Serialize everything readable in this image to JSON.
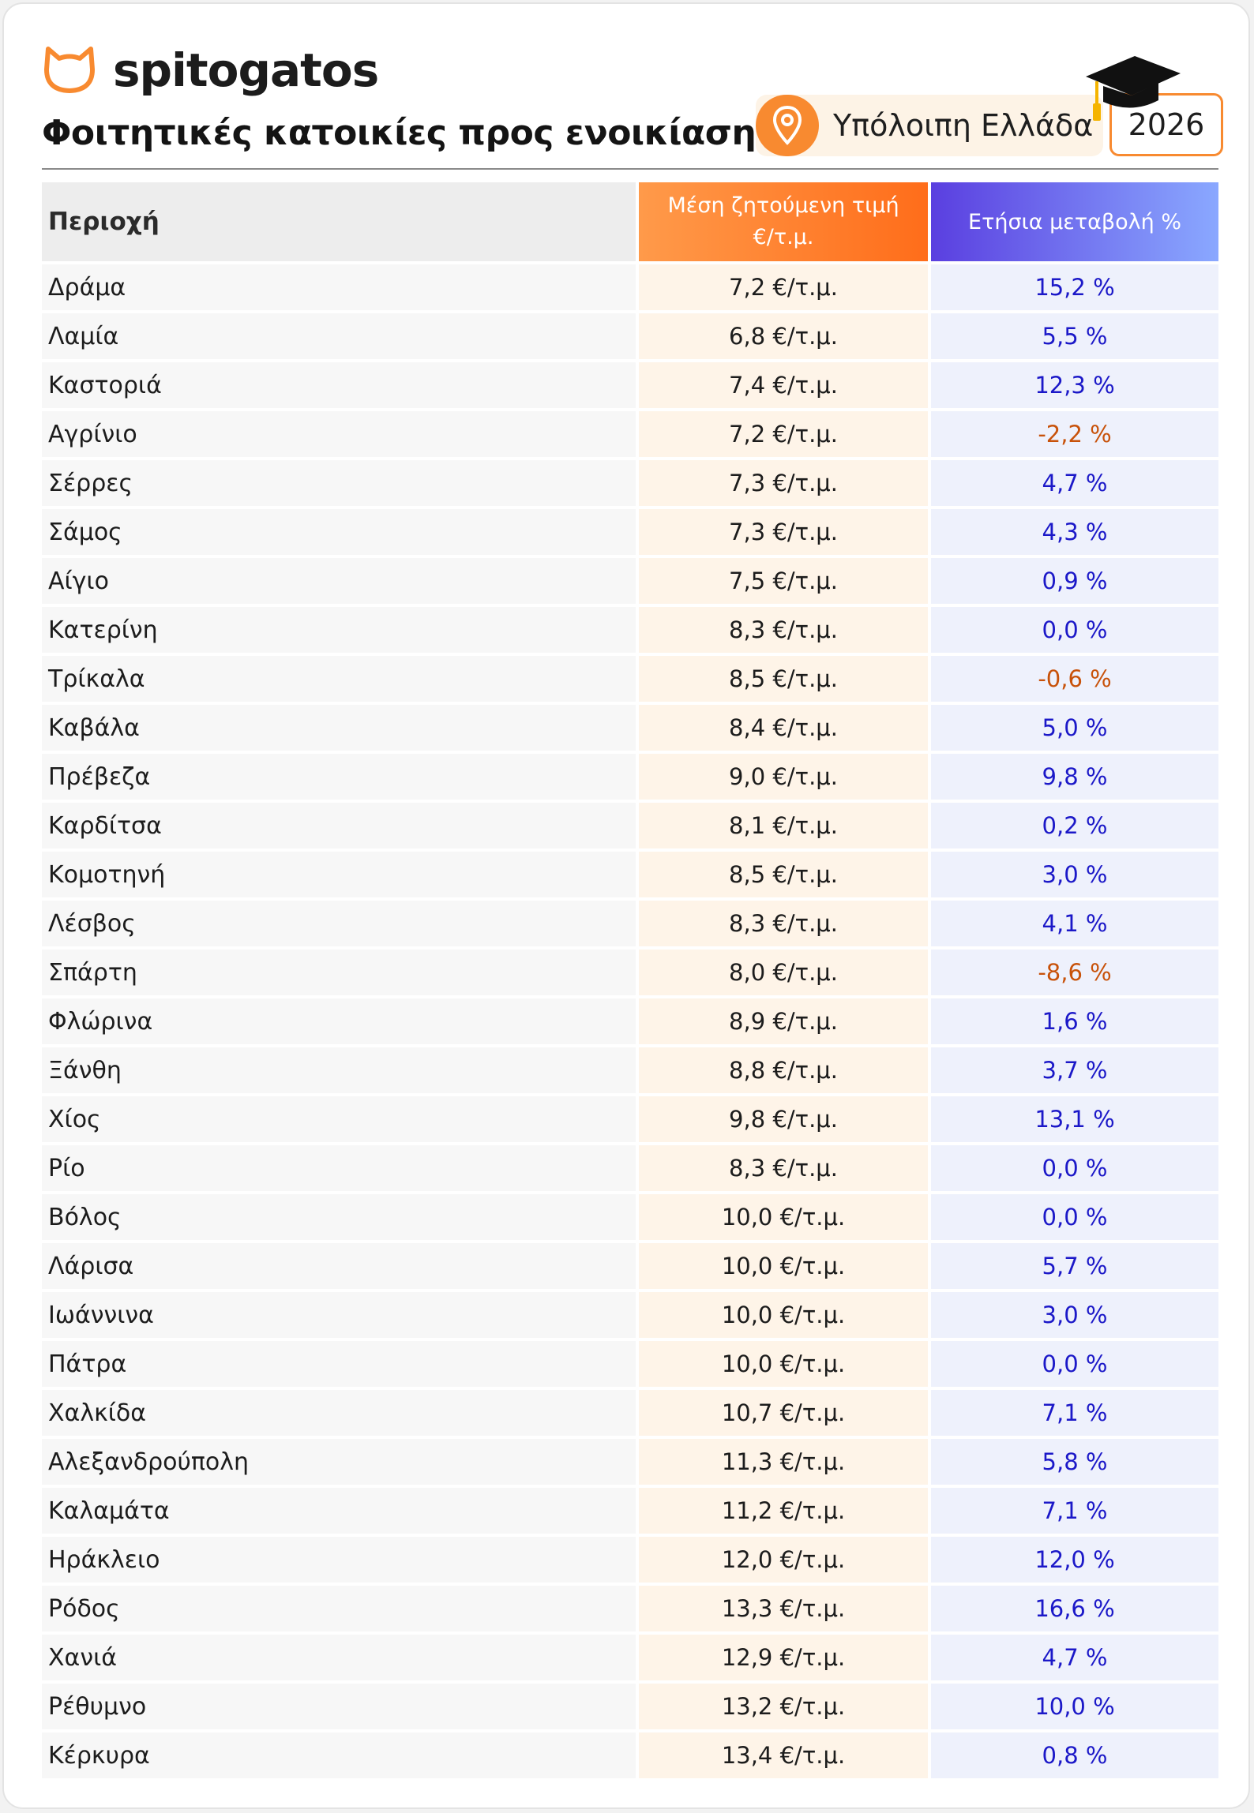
{
  "brand": {
    "name": "spitogatos"
  },
  "page": {
    "title": "Φοιτητικές κατοικίες προς ενοικίαση",
    "region": "Υπόλοιπη Ελλάδα",
    "year": "2026"
  },
  "colors": {
    "accent": "#f88a30",
    "positive": "#1b18c8",
    "negative": "#c8520a"
  },
  "icons": {
    "logo": "cat-logo-icon",
    "region": "location-pin-icon",
    "decoration": "graduation-cap-icon"
  },
  "table": {
    "headers": [
      "Περιοχή",
      "Μέση ζητούμενη τιμή €/τ.μ.",
      "Ετήσια μεταβολή %"
    ],
    "rows": [
      [
        "Δράμα",
        "7,2 €/τ.μ.",
        "15,2 %"
      ],
      [
        "Λαμία",
        "6,8 €/τ.μ.",
        "5,5 %"
      ],
      [
        "Καστοριά",
        "7,4 €/τ.μ.",
        "12,3 %"
      ],
      [
        "Αγρίνιο",
        "7,2 €/τ.μ.",
        "-2,2 %"
      ],
      [
        "Σέρρες",
        "7,3 €/τ.μ.",
        "4,7 %"
      ],
      [
        "Σάμος",
        "7,3 €/τ.μ.",
        "4,3 %"
      ],
      [
        "Αίγιο",
        "7,5 €/τ.μ.",
        "0,9 %"
      ],
      [
        "Κατερίνη",
        "8,3 €/τ.μ.",
        "0,0 %"
      ],
      [
        "Τρίκαλα",
        "8,5 €/τ.μ.",
        "-0,6 %"
      ],
      [
        "Καβάλα",
        "8,4 €/τ.μ.",
        "5,0 %"
      ],
      [
        "Πρέβεζα",
        "9,0 €/τ.μ.",
        "9,8 %"
      ],
      [
        "Καρδίτσα",
        "8,1 €/τ.μ.",
        "0,2 %"
      ],
      [
        "Κομοτηνή",
        "8,5 €/τ.μ.",
        "3,0 %"
      ],
      [
        "Λέσβος",
        "8,3 €/τ.μ.",
        "4,1 %"
      ],
      [
        "Σπάρτη",
        "8,0 €/τ.μ.",
        "-8,6 %"
      ],
      [
        "Φλώρινα",
        "8,9 €/τ.μ.",
        "1,6 %"
      ],
      [
        "Ξάνθη",
        "8,8 €/τ.μ.",
        "3,7 %"
      ],
      [
        "Χίος",
        "9,8 €/τ.μ.",
        "13,1 %"
      ],
      [
        "Ρίο",
        "8,3 €/τ.μ.",
        "0,0 %"
      ],
      [
        "Βόλος",
        "10,0 €/τ.μ.",
        "0,0 %"
      ],
      [
        "Λάρισα",
        "10,0 €/τ.μ.",
        "5,7 %"
      ],
      [
        "Ιωάννινα",
        "10,0 €/τ.μ.",
        "3,0 %"
      ],
      [
        "Πάτρα",
        "10,0 €/τ.μ.",
        "0,0 %"
      ],
      [
        "Χαλκίδα",
        "10,7 €/τ.μ.",
        "7,1 %"
      ],
      [
        "Αλεξανδρούπολη",
        "11,3 €/τ.μ.",
        "5,8 %"
      ],
      [
        "Καλαμάτα",
        "11,2 €/τ.μ.",
        "7,1 %"
      ],
      [
        "Ηράκλειο",
        "12,0 €/τ.μ.",
        "12,0 %"
      ],
      [
        "Ρόδος",
        "13,3 €/τ.μ.",
        "16,6 %"
      ],
      [
        "Χανιά",
        "12,9 €/τ.μ.",
        "4,7 %"
      ],
      [
        "Ρέθυμνο",
        "13,2 €/τ.μ.",
        "10,0 %"
      ],
      [
        "Κέρκυρα",
        "13,4 €/τ.μ.",
        "0,8 %"
      ]
    ]
  }
}
